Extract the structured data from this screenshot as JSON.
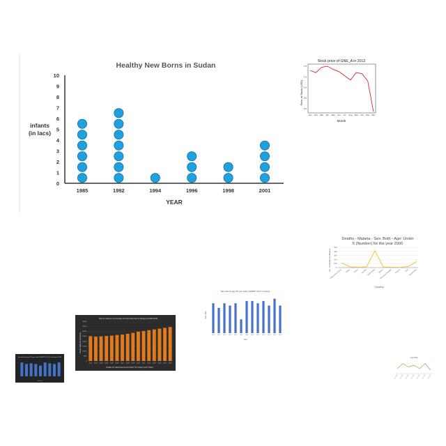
{
  "chart_data": [
    {
      "type": "pictograph",
      "title": "Healthy New Borns in Sudan",
      "xlabel": "YEAR",
      "ylabel_line1": "infants",
      "ylabel_line2": "(in lacs)",
      "categories": [
        "1985",
        "1992",
        "1994",
        "1996",
        "1998",
        "2001"
      ],
      "values": [
        6,
        7,
        1,
        3,
        2,
        4
      ],
      "ylim": [
        0,
        10
      ],
      "yticks": [
        "0",
        "1",
        "2",
        "3",
        "4",
        "5",
        "6",
        "7",
        "8",
        "9",
        "10"
      ],
      "marker_color": "#1fa0df"
    },
    {
      "type": "line",
      "title": "Stock price of GNE_A in 2013",
      "xlabel": "Month",
      "ylabel": "Price of Stock (USD)",
      "categories": [
        "Jan",
        "Feb",
        "Mar",
        "Apr",
        "May",
        "Jun",
        "Jul",
        "Aug",
        "Sep",
        "Oct",
        "Nov",
        "Dec"
      ],
      "values": [
        7.3,
        7.2,
        7.45,
        7.5,
        7.35,
        7.25,
        7.05,
        6.85,
        7.2,
        7.15,
        6.8,
        5.35
      ],
      "ylim": [
        5.3,
        7.6
      ],
      "yticks": [
        "5.5",
        "6.0",
        "6.5",
        "7.0",
        "7.5"
      ],
      "color": "#d62728"
    },
    {
      "type": "line",
      "title_line1": "Deaths - Malaria - Sex: Both - Age: Under",
      "title_line2": "5 (Number) for the year 2000",
      "xlabel": "Country",
      "ylabel": "No. of Deaths by Malaria",
      "categories": [
        "Papua New Guinea",
        "Sudan",
        "Yemen",
        "Namibia",
        "Saudi Arabia",
        "Bhutan",
        "Dominican Republic",
        "Guyana",
        "Haiti",
        "Saudi Arabia"
      ],
      "values": [
        120,
        20,
        10,
        20,
        420,
        15,
        10,
        5,
        30,
        150
      ],
      "ylim": [
        0,
        500
      ],
      "yticks": [
        "0",
        "100",
        "200",
        "300",
        "400",
        "500"
      ],
      "color": "#f2c218"
    },
    {
      "type": "bar",
      "title": "Sex ratio by age (15 year olds) (UNWPP, 2017) in Kenya",
      "xlabel": "Year",
      "ylabel": "Sex ratio",
      "categories": [
        "1990",
        "1991",
        "1992",
        "1993",
        "1994",
        "1995",
        "1996",
        "1997",
        "1998",
        "1999",
        "2000",
        "2001",
        "2002"
      ],
      "values": [
        101.3,
        101.1,
        101.3,
        101.2,
        101.3,
        100.6,
        101.4,
        101.4,
        101.3,
        101.4,
        101.2,
        101.5,
        101.2
      ],
      "ylim": [
        100,
        101.7
      ],
      "color": "#4472c4"
    },
    {
      "type": "bar",
      "title": "Sex ratio by age (15 year olds) (UNWPP, 2017) in the year 2010",
      "xlabel": "Country",
      "values": [
        0.9,
        0.8,
        0.85,
        0.8,
        0.7,
        0.9,
        0.85,
        0.8,
        0.9
      ],
      "ylim": [
        0,
        1
      ],
      "color": "#4472c4"
    },
    {
      "type": "bar",
      "title": "Net per capita (in thousands) of funds disbursed by Malaysia (1998-2015)",
      "xlabel": "NAME OF VEHICLE ALLOCATED TO FUND (LAST, 2016)",
      "ylabel": "Net per capita (in thousands)",
      "categories": [
        "2001",
        "2002",
        "2003",
        "2004",
        "2005",
        "2006",
        "2007",
        "2008",
        "2009",
        "2010",
        "2011",
        "2012",
        "2013",
        "2014",
        "2015",
        "2016"
      ],
      "values": [
        25,
        24.5,
        24.8,
        25.2,
        25.6,
        26.2,
        26.6,
        27.4,
        28.3,
        29.6,
        30.2,
        31.0,
        31.8,
        32.6,
        33.4,
        34.2
      ],
      "ylim": [
        0,
        40
      ],
      "yticks": [
        "0",
        "5000",
        "10000",
        "15000",
        "20000",
        "25000",
        "30000",
        "35000",
        "40000"
      ],
      "color": "#e07a1c"
    },
    {
      "type": "line",
      "title": "Year 2010",
      "values": [
        3,
        6,
        4,
        5,
        3,
        6,
        2
      ],
      "ylim": [
        0,
        8
      ],
      "color": "#7ab648"
    }
  ]
}
